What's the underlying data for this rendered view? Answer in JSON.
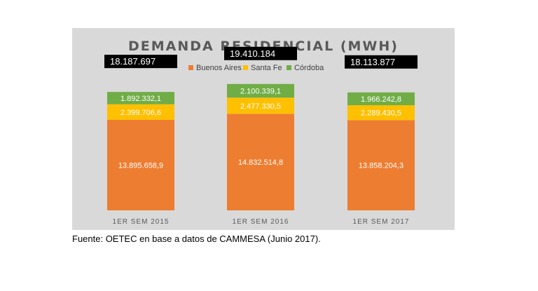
{
  "chart_data": {
    "type": "bar",
    "stacked": true,
    "title": "DEMANDA RESIDENCIAL (MWH)",
    "categories": [
      "1ER SEM 2015",
      "1ER SEM 2016",
      "1ER SEM 2017"
    ],
    "series": [
      {
        "name": "Buenos Aires",
        "color": "#ed7d31",
        "values": [
          13895658.9,
          14832514.8,
          13858204.3
        ],
        "labels": [
          "13.895.658,9",
          "14.832.514,8",
          "13.858.204,3"
        ]
      },
      {
        "name": "Santa Fe",
        "color": "#ffc000",
        "values": [
          2399706.6,
          2477330.5,
          2289430.5
        ],
        "labels": [
          "2.399.706,6",
          "2.477.330,5",
          "2.289.430,5"
        ]
      },
      {
        "name": "Córdoba",
        "color": "#70ad47",
        "values": [
          1892332.1,
          2100339.1,
          1966242.8
        ],
        "labels": [
          "1.892.332,1",
          "2.100.339,1",
          "1.966.242,8"
        ]
      }
    ],
    "totals": [
      "18.187.697",
      "19.410.184",
      "18.113.877"
    ],
    "legend_position": "top",
    "grid": false
  },
  "source_note": "Fuente: OETEC en base a datos de CAMMESA (Junio 2017)."
}
